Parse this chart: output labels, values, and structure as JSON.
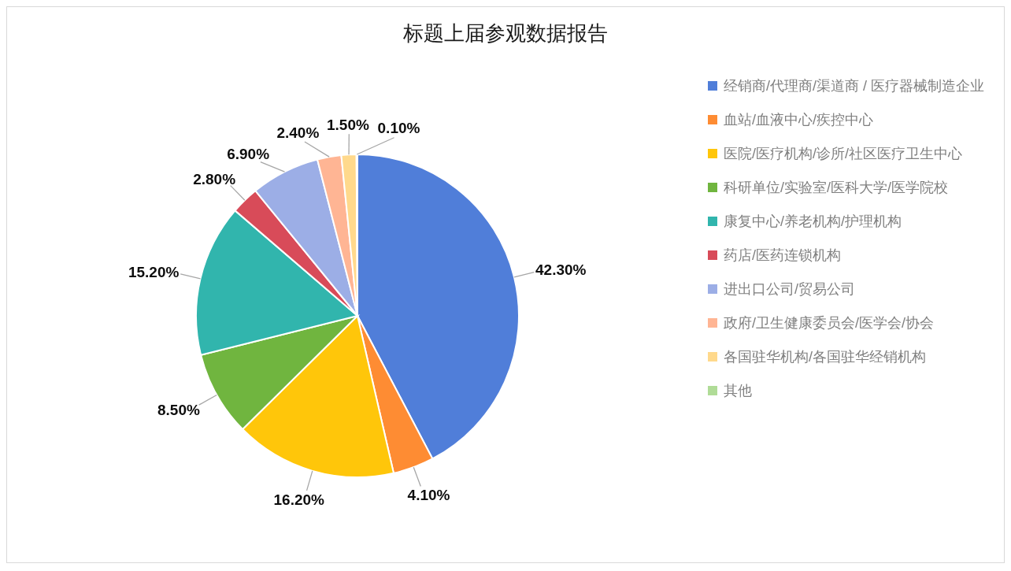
{
  "chart_data": {
    "type": "pie",
    "title": "标题上届参观数据报告",
    "categories": [
      "经销商/代理商/渠道商 / 医疗器械制造企业",
      "血站/血液中心/疾控中心",
      "医院/医疗机构/诊所/社区医疗卫生中心",
      "科研单位/实验室/医科大学/医学院校",
      "康复中心/养老机构/护理机构",
      "药店/医药连锁机构",
      "进出口公司/贸易公司",
      "政府/卫生健康委员会/医学会/协会",
      "各国驻华机构/各国驻华经销机构",
      "其他"
    ],
    "values": [
      42.3,
      4.1,
      16.2,
      8.5,
      15.2,
      2.8,
      6.9,
      2.4,
      1.5,
      0.1
    ],
    "colors": [
      "#507ed9",
      "#fe8c33",
      "#ffc60a",
      "#70b53f",
      "#31b5ad",
      "#d84b59",
      "#9caee6",
      "#ffb594",
      "#ffd98c",
      "#b0dc97"
    ],
    "value_labels": [
      "42.30%",
      "4.10%",
      "16.20%",
      "8.50%",
      "15.20%",
      "2.80%",
      "6.90%",
      "2.40%",
      "1.50%",
      "0.10%"
    ],
    "legend": "right"
  }
}
